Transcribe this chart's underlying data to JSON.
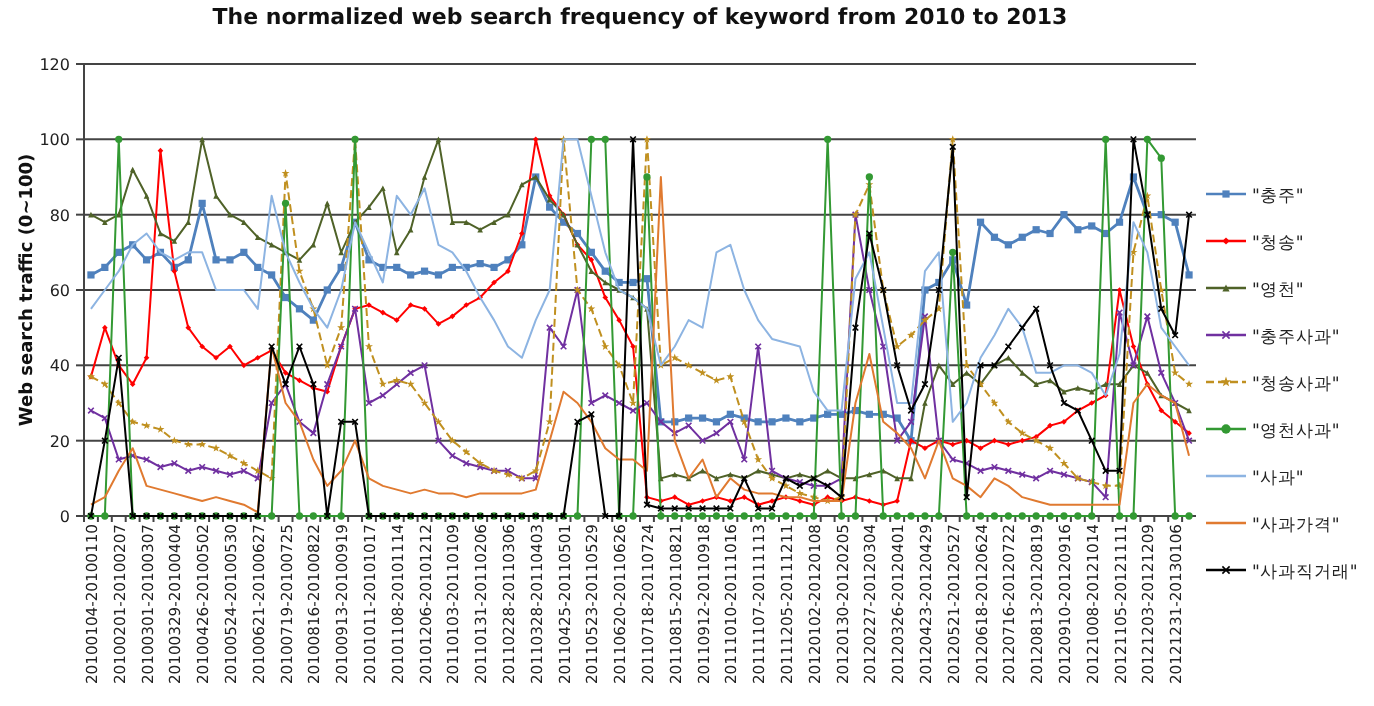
{
  "chart_data": {
    "type": "line",
    "title": "The normalized web search frequency of keyword from 2010 to 2013",
    "ylabel": "Web search traffic (0~100)",
    "categories": [
      "20100104-20100110",
      null,
      "20100201-20100207",
      null,
      "20100301-20100307",
      null,
      "20100329-20100404",
      null,
      "20100426-20100502",
      null,
      "20100524-20100530",
      null,
      "20100621-20100627",
      null,
      "20100719-20100725",
      null,
      "20100816-20100822",
      null,
      "20100913-20100919",
      null,
      "20101011-20101017",
      null,
      "20101108-20101114",
      null,
      "20101206-20101212",
      null,
      "20110103-20110109",
      null,
      "20110131-20110206",
      null,
      "20110228-20110306",
      null,
      "20110328-20110403",
      null,
      "20110425-20110501",
      null,
      "20110523-20110529",
      null,
      "20110620-20110626",
      null,
      "20110718-20110724",
      null,
      "20110815-20110821",
      null,
      "20110912-20110918",
      null,
      "20111010-20111016",
      null,
      "20111107-20111113",
      null,
      "20111205-20111211",
      null,
      "20120102-20120108",
      null,
      "20120130-20120205",
      null,
      "20120227-20120304",
      null,
      "20120326-20120401",
      null,
      "20120423-20120429",
      null,
      "20120521-20120527",
      null,
      "20120618-20120624",
      null,
      "20120716-20120722",
      null,
      "20120813-20120819",
      null,
      "20120910-20120916",
      null,
      "20121008-20121014",
      null,
      "20121105-20121111",
      null,
      "20121203-20121209",
      null,
      "20121231-20130106",
      null
    ],
    "series": [
      {
        "name": "\"충주\"",
        "color": "#4f81bd",
        "marker": "square",
        "values": [
          64,
          66,
          70,
          72,
          68,
          70,
          66,
          68,
          83,
          68,
          68,
          70,
          66,
          64,
          58,
          55,
          52,
          60,
          66,
          78,
          68,
          66,
          66,
          64,
          65,
          64,
          66,
          66,
          67,
          66,
          68,
          72,
          90,
          82,
          78,
          75,
          70,
          65,
          62,
          62,
          63,
          25,
          25,
          26,
          26,
          25,
          27,
          26,
          25,
          25,
          26,
          25,
          26,
          27,
          27,
          28,
          27,
          27,
          26,
          20,
          60,
          62,
          68,
          56,
          78,
          74,
          72,
          74,
          76,
          75,
          80,
          76,
          77,
          75,
          78,
          90,
          80,
          80,
          78,
          64
        ]
      },
      {
        "name": "\"청송\"",
        "color": "#ff0000",
        "marker": "diamond",
        "values": [
          37,
          50,
          40,
          35,
          42,
          97,
          65,
          50,
          45,
          42,
          45,
          40,
          42,
          44,
          38,
          36,
          34,
          33,
          45,
          55,
          56,
          54,
          52,
          56,
          55,
          51,
          53,
          56,
          58,
          62,
          65,
          75,
          100,
          85,
          80,
          72,
          68,
          58,
          52,
          45,
          5,
          4,
          5,
          3,
          4,
          5,
          4,
          5,
          3,
          4,
          5,
          4,
          3,
          5,
          4,
          5,
          4,
          3,
          4,
          20,
          18,
          20,
          19,
          20,
          18,
          20,
          19,
          20,
          21,
          24,
          25,
          28,
          30,
          32,
          60,
          45,
          35,
          28,
          25,
          22
        ]
      },
      {
        "name": "\"영천\"",
        "color": "#4f6228",
        "marker": "triangle",
        "values": [
          80,
          78,
          80,
          92,
          85,
          75,
          73,
          78,
          100,
          85,
          80,
          78,
          74,
          72,
          70,
          68,
          72,
          83,
          70,
          78,
          82,
          87,
          70,
          76,
          90,
          100,
          78,
          78,
          76,
          78,
          80,
          88,
          90,
          84,
          80,
          72,
          65,
          62,
          60,
          58,
          55,
          10,
          11,
          10,
          12,
          10,
          11,
          10,
          12,
          11,
          10,
          11,
          10,
          12,
          10,
          10,
          11,
          12,
          10,
          10,
          30,
          40,
          35,
          38,
          35,
          40,
          42,
          38,
          35,
          36,
          33,
          34,
          33,
          35,
          35,
          40,
          38,
          32,
          30,
          28
        ]
      },
      {
        "name": "\"충주사과\"",
        "color": "#7030a0",
        "marker": "cross",
        "values": [
          28,
          26,
          15,
          16,
          15,
          13,
          14,
          12,
          13,
          12,
          11,
          12,
          10,
          30,
          35,
          25,
          22,
          35,
          45,
          55,
          30,
          32,
          35,
          38,
          40,
          20,
          16,
          14,
          13,
          12,
          12,
          10,
          10,
          50,
          45,
          60,
          30,
          32,
          30,
          28,
          30,
          25,
          22,
          24,
          20,
          22,
          25,
          15,
          45,
          12,
          10,
          9,
          8,
          8,
          10,
          80,
          60,
          45,
          20,
          25,
          53,
          20,
          15,
          14,
          12,
          13,
          12,
          11,
          10,
          12,
          11,
          10,
          9,
          5,
          54,
          40,
          53,
          38,
          30,
          20
        ]
      },
      {
        "name": "\"청송사과\"",
        "color": "#c09020",
        "marker": "star",
        "line_style": "dashed",
        "values": [
          37,
          35,
          30,
          25,
          24,
          23,
          20,
          19,
          19,
          18,
          16,
          14,
          12,
          10,
          91,
          65,
          55,
          40,
          50,
          100,
          45,
          35,
          36,
          35,
          30,
          25,
          20,
          17,
          14,
          12,
          11,
          10,
          12,
          25,
          100,
          60,
          55,
          45,
          40,
          30,
          100,
          40,
          42,
          40,
          38,
          36,
          37,
          25,
          15,
          10,
          8,
          6,
          5,
          4,
          5,
          80,
          88,
          60,
          45,
          48,
          52,
          55,
          100,
          40,
          35,
          30,
          25,
          22,
          20,
          18,
          14,
          10,
          9,
          8,
          8,
          70,
          85,
          60,
          38,
          35
        ]
      },
      {
        "name": "\"영천사과\"",
        "color": "#339933",
        "marker": "circle",
        "values": [
          0,
          0,
          100,
          0,
          0,
          0,
          0,
          0,
          0,
          0,
          0,
          0,
          0,
          0,
          83,
          0,
          0,
          0,
          0,
          100,
          0,
          0,
          0,
          0,
          0,
          0,
          0,
          0,
          0,
          0,
          0,
          0,
          0,
          0,
          0,
          0,
          100,
          100,
          0,
          0,
          90,
          0,
          0,
          0,
          0,
          0,
          0,
          0,
          0,
          0,
          0,
          0,
          0,
          100,
          0,
          0,
          90,
          0,
          0,
          0,
          0,
          0,
          70,
          0,
          0,
          0,
          0,
          0,
          0,
          0,
          0,
          0,
          0,
          100,
          0,
          0,
          100,
          95,
          0,
          0
        ]
      },
      {
        "name": "\"사과\"",
        "color": "#8db4e2",
        "marker": "none",
        "values": [
          55,
          60,
          65,
          72,
          75,
          70,
          68,
          70,
          70,
          60,
          60,
          60,
          55,
          85,
          70,
          62,
          55,
          50,
          60,
          78,
          70,
          62,
          85,
          80,
          87,
          72,
          70,
          65,
          58,
          52,
          45,
          42,
          52,
          60,
          100,
          100,
          85,
          70,
          60,
          58,
          55,
          40,
          45,
          52,
          50,
          70,
          72,
          60,
          52,
          47,
          46,
          45,
          33,
          28,
          28,
          63,
          70,
          50,
          30,
          30,
          65,
          70,
          25,
          30,
          42,
          48,
          55,
          50,
          38,
          38,
          40,
          40,
          38,
          32,
          43,
          78,
          70,
          50,
          45,
          40
        ]
      },
      {
        "name": "\"사과가격\"",
        "color": "#e07a30",
        "marker": "none",
        "values": [
          3,
          5,
          12,
          18,
          8,
          7,
          6,
          5,
          4,
          5,
          4,
          3,
          1,
          45,
          30,
          25,
          15,
          8,
          12,
          20,
          10,
          8,
          7,
          6,
          7,
          6,
          6,
          5,
          6,
          6,
          6,
          6,
          7,
          20,
          33,
          30,
          25,
          18,
          15,
          15,
          12,
          90,
          20,
          10,
          15,
          5,
          10,
          7,
          6,
          6,
          5,
          5,
          4,
          4,
          4,
          30,
          43,
          25,
          22,
          18,
          10,
          20,
          10,
          8,
          5,
          10,
          8,
          5,
          4,
          3,
          3,
          3,
          3,
          3,
          3,
          30,
          35,
          32,
          30,
          16
        ]
      },
      {
        "name": "\"사과직거래\"",
        "color": "#000000",
        "marker": "cross",
        "values": [
          0,
          20,
          42,
          0,
          0,
          0,
          0,
          0,
          0,
          0,
          0,
          0,
          0,
          45,
          35,
          45,
          35,
          0,
          25,
          25,
          0,
          0,
          0,
          0,
          0,
          0,
          0,
          0,
          0,
          0,
          0,
          0,
          0,
          0,
          0,
          25,
          27,
          0,
          0,
          100,
          3,
          2,
          2,
          2,
          2,
          2,
          2,
          10,
          2,
          2,
          10,
          8,
          10,
          8,
          5,
          50,
          75,
          60,
          40,
          28,
          35,
          60,
          98,
          5,
          40,
          40,
          45,
          50,
          55,
          40,
          30,
          28,
          20,
          12,
          12,
          100,
          80,
          55,
          48,
          80
        ]
      }
    ],
    "ylim": [
      0,
      120
    ],
    "yticks": [
      0,
      20,
      40,
      60,
      80,
      100,
      120
    ],
    "grid": "y",
    "legend": "right"
  }
}
